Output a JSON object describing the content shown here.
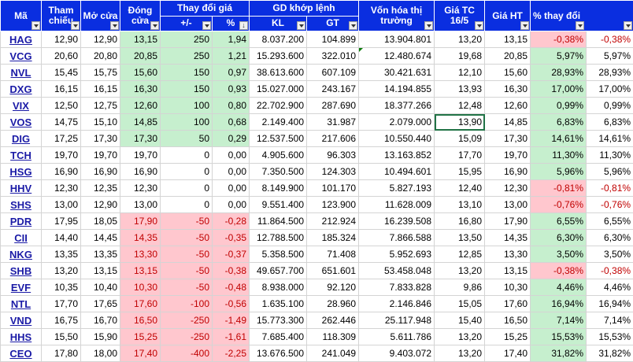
{
  "headers": {
    "ma": "Mã",
    "tham_chieu": "Tham chiếu",
    "mo_cua": "Mở cửa",
    "dong_cua": "Đóng cửa",
    "thay_doi_gia": "Thay đổi giá",
    "plus_minus": "+/-",
    "percent": "%",
    "gd_khop_lenh": "GD khớp lệnh",
    "kl": "KL",
    "gt": "GT",
    "von_hoa": "Vốn hóa thị trường",
    "gia_tc": "Giá TC 16/5",
    "gia_ht": "Giá HT",
    "pct_thay_doi": "% thay đổi"
  },
  "rows": [
    {
      "ma": "HAG",
      "tc": "12,90",
      "mo": "12,90",
      "dong": "13,15",
      "pm": "250",
      "pct": "1,94",
      "kl": "8.037.200",
      "gt": "104.899",
      "vh": "13.904.801",
      "giatc": "13,20",
      "giaht": "13,15",
      "chg": "-0,38%",
      "chg2": "-0,38%",
      "dir": "up",
      "chgdir": "neg"
    },
    {
      "ma": "VCG",
      "tc": "20,60",
      "mo": "20,80",
      "dong": "20,85",
      "pm": "250",
      "pct": "1,21",
      "kl": "15.293.600",
      "gt": "322.010",
      "vh": "12.480.674",
      "giatc": "19,68",
      "giaht": "20,85",
      "chg": "5,97%",
      "chg2": "5,97%",
      "dir": "up",
      "chgdir": "pos"
    },
    {
      "ma": "NVL",
      "tc": "15,45",
      "mo": "15,75",
      "dong": "15,60",
      "pm": "150",
      "pct": "0,97",
      "kl": "38.613.600",
      "gt": "607.109",
      "vh": "30.421.631",
      "giatc": "12,10",
      "giaht": "15,60",
      "chg": "28,93%",
      "chg2": "28,93%",
      "dir": "up",
      "chgdir": "pos"
    },
    {
      "ma": "DXG",
      "tc": "16,15",
      "mo": "16,15",
      "dong": "16,30",
      "pm": "150",
      "pct": "0,93",
      "kl": "15.027.000",
      "gt": "243.167",
      "vh": "14.194.855",
      "giatc": "13,93",
      "giaht": "16,30",
      "chg": "17,00%",
      "chg2": "17,00%",
      "dir": "up",
      "chgdir": "pos"
    },
    {
      "ma": "VIX",
      "tc": "12,50",
      "mo": "12,75",
      "dong": "12,60",
      "pm": "100",
      "pct": "0,80",
      "kl": "22.702.900",
      "gt": "287.690",
      "vh": "18.377.266",
      "giatc": "12,48",
      "giaht": "12,60",
      "chg": "0,99%",
      "chg2": "0,99%",
      "dir": "up",
      "chgdir": "pos"
    },
    {
      "ma": "VOS",
      "tc": "14,75",
      "mo": "15,10",
      "dong": "14,85",
      "pm": "100",
      "pct": "0,68",
      "kl": "2.149.400",
      "gt": "31.987",
      "vh": "2.079.000",
      "giatc": "13,90",
      "giaht": "14,85",
      "chg": "6,83%",
      "chg2": "6,83%",
      "dir": "up",
      "chgdir": "pos"
    },
    {
      "ma": "DIG",
      "tc": "17,25",
      "mo": "17,30",
      "dong": "17,30",
      "pm": "50",
      "pct": "0,29",
      "kl": "12.537.500",
      "gt": "217.606",
      "vh": "10.550.440",
      "giatc": "15,09",
      "giaht": "17,30",
      "chg": "14,61%",
      "chg2": "14,61%",
      "dir": "up",
      "chgdir": "pos"
    },
    {
      "ma": "TCH",
      "tc": "19,70",
      "mo": "19,70",
      "dong": "19,70",
      "pm": "0",
      "pct": "0,00",
      "kl": "4.905.600",
      "gt": "96.303",
      "vh": "13.163.852",
      "giatc": "17,70",
      "giaht": "19,70",
      "chg": "11,30%",
      "chg2": "11,30%",
      "dir": "flat",
      "chgdir": "pos"
    },
    {
      "ma": "HSG",
      "tc": "16,90",
      "mo": "16,90",
      "dong": "16,90",
      "pm": "0",
      "pct": "0,00",
      "kl": "7.350.500",
      "gt": "124.303",
      "vh": "10.494.601",
      "giatc": "15,95",
      "giaht": "16,90",
      "chg": "5,96%",
      "chg2": "5,96%",
      "dir": "flat",
      "chgdir": "pos"
    },
    {
      "ma": "HHV",
      "tc": "12,30",
      "mo": "12,35",
      "dong": "12,30",
      "pm": "0",
      "pct": "0,00",
      "kl": "8.149.900",
      "gt": "101.170",
      "vh": "5.827.193",
      "giatc": "12,40",
      "giaht": "12,30",
      "chg": "-0,81%",
      "chg2": "-0,81%",
      "dir": "flat",
      "chgdir": "neg"
    },
    {
      "ma": "SHS",
      "tc": "13,00",
      "mo": "12,90",
      "dong": "13,00",
      "pm": "0",
      "pct": "0,00",
      "kl": "9.551.400",
      "gt": "123.900",
      "vh": "11.628.009",
      "giatc": "13,10",
      "giaht": "13,00",
      "chg": "-0,76%",
      "chg2": "-0,76%",
      "dir": "flat",
      "chgdir": "neg"
    },
    {
      "ma": "PDR",
      "tc": "17,95",
      "mo": "18,05",
      "dong": "17,90",
      "pm": "-50",
      "pct": "-0,28",
      "kl": "11.864.500",
      "gt": "212.924",
      "vh": "16.239.508",
      "giatc": "16,80",
      "giaht": "17,90",
      "chg": "6,55%",
      "chg2": "6,55%",
      "dir": "down",
      "chgdir": "pos"
    },
    {
      "ma": "CII",
      "tc": "14,40",
      "mo": "14,45",
      "dong": "14,35",
      "pm": "-50",
      "pct": "-0,35",
      "kl": "12.788.500",
      "gt": "185.324",
      "vh": "7.866.588",
      "giatc": "13,50",
      "giaht": "14,35",
      "chg": "6,30%",
      "chg2": "6,30%",
      "dir": "down",
      "chgdir": "pos"
    },
    {
      "ma": "NKG",
      "tc": "13,35",
      "mo": "13,35",
      "dong": "13,30",
      "pm": "-50",
      "pct": "-0,37",
      "kl": "5.358.500",
      "gt": "71.408",
      "vh": "5.952.693",
      "giatc": "12,85",
      "giaht": "13,30",
      "chg": "3,50%",
      "chg2": "3,50%",
      "dir": "down",
      "chgdir": "pos"
    },
    {
      "ma": "SHB",
      "tc": "13,20",
      "mo": "13,15",
      "dong": "13,15",
      "pm": "-50",
      "pct": "-0,38",
      "kl": "49.657.700",
      "gt": "651.601",
      "vh": "53.458.048",
      "giatc": "13,20",
      "giaht": "13,15",
      "chg": "-0,38%",
      "chg2": "-0,38%",
      "dir": "down",
      "chgdir": "neg"
    },
    {
      "ma": "EVF",
      "tc": "10,35",
      "mo": "10,40",
      "dong": "10,30",
      "pm": "-50",
      "pct": "-0,48",
      "kl": "8.938.000",
      "gt": "92.120",
      "vh": "7.833.828",
      "giatc": "9,86",
      "giaht": "10,30",
      "chg": "4,46%",
      "chg2": "4,46%",
      "dir": "down",
      "chgdir": "pos"
    },
    {
      "ma": "NTL",
      "tc": "17,70",
      "mo": "17,65",
      "dong": "17,60",
      "pm": "-100",
      "pct": "-0,56",
      "kl": "1.635.100",
      "gt": "28.960",
      "vh": "2.146.846",
      "giatc": "15,05",
      "giaht": "17,60",
      "chg": "16,94%",
      "chg2": "16,94%",
      "dir": "down",
      "chgdir": "pos"
    },
    {
      "ma": "VND",
      "tc": "16,75",
      "mo": "16,70",
      "dong": "16,50",
      "pm": "-250",
      "pct": "-1,49",
      "kl": "15.773.300",
      "gt": "262.446",
      "vh": "25.117.948",
      "giatc": "15,40",
      "giaht": "16,50",
      "chg": "7,14%",
      "chg2": "7,14%",
      "dir": "down",
      "chgdir": "pos"
    },
    {
      "ma": "HHS",
      "tc": "15,50",
      "mo": "15,90",
      "dong": "15,25",
      "pm": "-250",
      "pct": "-1,61",
      "kl": "7.685.400",
      "gt": "118.309",
      "vh": "5.611.786",
      "giatc": "13,20",
      "giaht": "15,25",
      "chg": "15,53%",
      "chg2": "15,53%",
      "dir": "down",
      "chgdir": "pos"
    },
    {
      "ma": "CEO",
      "tc": "17,80",
      "mo": "18,00",
      "dong": "17,40",
      "pm": "-400",
      "pct": "-2,25",
      "kl": "13.676.500",
      "gt": "241.049",
      "vh": "9.403.072",
      "giatc": "13,20",
      "giaht": "17,40",
      "chg": "31,82%",
      "chg2": "31,82%",
      "dir": "down",
      "chgdir": "pos"
    }
  ],
  "colors": {
    "header_bg": "#0a2ee0",
    "up_fill": "#c6efce",
    "down_fill": "#ffc7ce",
    "down_text": "#c00000"
  }
}
